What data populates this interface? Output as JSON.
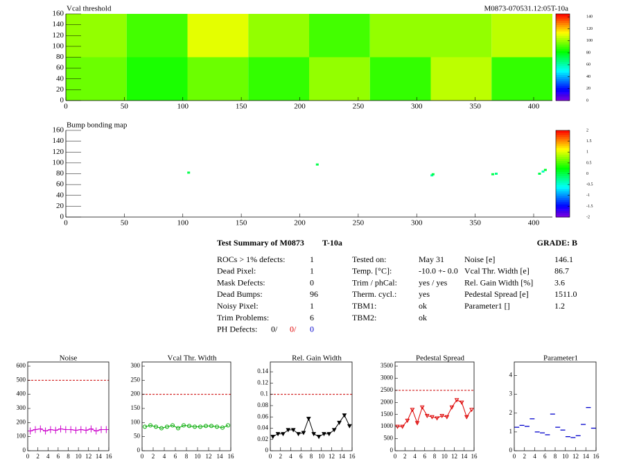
{
  "chart_data": [
    {
      "type": "heatmap",
      "title": "Vcal threshold",
      "subtitle": "M0873-070531.12:05T-10a",
      "xbins": [
        0,
        52,
        104,
        156,
        208,
        260,
        312,
        364,
        416
      ],
      "ybins": [
        0,
        80,
        160
      ],
      "z": [
        [
          95,
          85,
          95,
          88,
          100,
          88,
          105,
          88
        ],
        [
          100,
          90,
          110,
          100,
          90,
          100,
          100,
          105
        ]
      ],
      "xlim": [
        0,
        416
      ],
      "ylim": [
        0,
        160
      ],
      "xticks": [
        0,
        50,
        100,
        150,
        200,
        250,
        300,
        350,
        400
      ],
      "yticks": [
        0,
        20,
        40,
        60,
        80,
        100,
        120,
        140,
        160
      ],
      "zlim": [
        0,
        145
      ],
      "zticks": [
        0,
        20,
        40,
        60,
        80,
        100,
        120,
        140
      ]
    },
    {
      "type": "scatter",
      "title": "Bump bonding map",
      "x": [
        105,
        215,
        313,
        314,
        365,
        368,
        405,
        408,
        410
      ],
      "y": [
        82,
        97,
        77,
        79,
        79,
        80,
        80,
        84,
        87
      ],
      "z": [
        0,
        0,
        -0.3,
        0,
        0,
        -0.2,
        0,
        -0.4,
        0.1
      ],
      "xlim": [
        0,
        416
      ],
      "ylim": [
        0,
        160
      ],
      "xticks": [
        0,
        50,
        100,
        150,
        200,
        250,
        300,
        350,
        400
      ],
      "yticks": [
        0,
        20,
        40,
        60,
        80,
        100,
        120,
        140,
        160
      ],
      "zlim": [
        -2,
        2
      ],
      "zticks": [
        -2,
        -1.5,
        -1,
        -0.5,
        0,
        0.5,
        1,
        1.5,
        2
      ]
    },
    {
      "type": "line",
      "title": "Noise",
      "color": "#cc00cc",
      "marker": "cross",
      "line": true,
      "x": [
        0.5,
        1.5,
        2.5,
        3.5,
        4.5,
        5.5,
        6.5,
        7.5,
        8.5,
        9.5,
        10.5,
        11.5,
        12.5,
        13.5,
        14.5,
        15.5
      ],
      "values": [
        140,
        150,
        155,
        140,
        150,
        145,
        155,
        150,
        150,
        145,
        150,
        145,
        155,
        140,
        150,
        150
      ],
      "threshold": 500,
      "threshold_color": "#cc0000",
      "xlim": [
        0,
        16
      ],
      "ylim": [
        0,
        600
      ],
      "xticks": [
        0,
        2,
        4,
        6,
        8,
        10,
        12,
        14,
        16
      ],
      "yticks": [
        0,
        100,
        200,
        300,
        400,
        500,
        600
      ]
    },
    {
      "type": "line",
      "title": "Vcal Thr. Width",
      "color": "#00aa00",
      "marker": "circle",
      "line": true,
      "x": [
        0.5,
        1.5,
        2.5,
        3.5,
        4.5,
        5.5,
        6.5,
        7.5,
        8.5,
        9.5,
        10.5,
        11.5,
        12.5,
        13.5,
        14.5,
        15.5
      ],
      "values": [
        85,
        90,
        85,
        80,
        85,
        90,
        80,
        90,
        88,
        85,
        85,
        88,
        88,
        85,
        82,
        90
      ],
      "threshold": 200,
      "threshold_color": "#cc0000",
      "xlim": [
        0,
        16
      ],
      "ylim": [
        0,
        300
      ],
      "xticks": [
        0,
        2,
        4,
        6,
        8,
        10,
        12,
        14,
        16
      ],
      "yticks": [
        0,
        50,
        100,
        150,
        200,
        250,
        300
      ]
    },
    {
      "type": "line",
      "title": "Rel. Gain Width",
      "color": "#000000",
      "marker": "triangle",
      "line": true,
      "x": [
        0.5,
        1.5,
        2.5,
        3.5,
        4.5,
        5.5,
        6.5,
        7.5,
        8.5,
        9.5,
        10.5,
        11.5,
        12.5,
        13.5,
        14.5,
        15.5
      ],
      "values": [
        0.025,
        0.03,
        0.03,
        0.037,
        0.037,
        0.03,
        0.032,
        0.057,
        0.03,
        0.025,
        0.03,
        0.03,
        0.037,
        0.05,
        0.063,
        0.044
      ],
      "threshold": 0.1,
      "threshold_color": "#cc0000",
      "xlim": [
        0,
        16
      ],
      "ylim": [
        0,
        0.15
      ],
      "xticks": [
        0,
        2,
        4,
        6,
        8,
        10,
        12,
        14,
        16
      ],
      "yticks": [
        0,
        0.02,
        0.04,
        0.06,
        0.08,
        0.1,
        0.12,
        0.14
      ]
    },
    {
      "type": "line",
      "title": "Pedestal Spread",
      "color": "#dd0000",
      "marker": "triangle",
      "line": true,
      "x": [
        0.5,
        1.5,
        2.5,
        3.5,
        4.5,
        5.5,
        6.5,
        7.5,
        8.5,
        9.5,
        10.5,
        11.5,
        12.5,
        13.5,
        14.5,
        15.5
      ],
      "values": [
        1000,
        1000,
        1250,
        1700,
        1150,
        1800,
        1450,
        1400,
        1350,
        1450,
        1400,
        1800,
        2100,
        2000,
        1400,
        1700
      ],
      "threshold": 2500,
      "threshold_color": "#cc0000",
      "xlim": [
        0,
        16
      ],
      "ylim": [
        0,
        3500
      ],
      "xticks": [
        0,
        2,
        4,
        6,
        8,
        10,
        12,
        14,
        16
      ],
      "yticks": [
        0,
        500,
        1000,
        1500,
        2000,
        2500,
        3000,
        3500
      ]
    },
    {
      "type": "line",
      "title": "Parameter1",
      "color": "#0000cc",
      "marker": "dash",
      "line": false,
      "x": [
        0.5,
        1.5,
        2.5,
        3.5,
        4.5,
        5.5,
        6.5,
        7.5,
        8.5,
        9.5,
        10.5,
        11.5,
        12.5,
        13.5,
        14.5,
        15.5
      ],
      "values": [
        1.25,
        1.35,
        1.3,
        1.7,
        1.0,
        0.95,
        0.85,
        1.95,
        1.25,
        1.1,
        0.75,
        0.7,
        0.8,
        1.4,
        2.3,
        1.2
      ],
      "xlim": [
        0,
        16
      ],
      "ylim": [
        0,
        4.5
      ],
      "xticks": [
        0,
        2,
        4,
        6,
        8,
        10,
        12,
        14,
        16
      ],
      "yticks": [
        0,
        1,
        2,
        3,
        4
      ]
    }
  ],
  "summary": {
    "title": "Test Summary of M0873",
    "tag": "T-10a",
    "grade": "GRADE:  B",
    "left": [
      [
        "ROCs > 1% defects:",
        "1"
      ],
      [
        "Dead Pixel:",
        "1"
      ],
      [
        "Mask Defects:",
        "0"
      ],
      [
        "Dead Bumps:",
        "96"
      ],
      [
        "Noisy Pixel:",
        "1"
      ],
      [
        "Trim Problems:",
        "6"
      ]
    ],
    "ph_label": "PH Defects:",
    "ph_values": [
      "0/",
      "0/",
      "0"
    ],
    "middle": [
      [
        "Tested on:",
        "May 31"
      ],
      [
        "Temp. [°C]:",
        "-10.0 +- 0.0"
      ],
      [
        "Trim / phCal:",
        "yes / yes"
      ],
      [
        "Therm. cycl.:",
        "yes"
      ],
      [
        "TBM1:",
        "ok"
      ],
      [
        "TBM2:",
        "ok"
      ]
    ],
    "right": [
      [
        "Noise [e]",
        "146.1"
      ],
      [
        "Vcal Thr. Width [e]",
        "86.7"
      ],
      [
        "Rel. Gain Width [%]",
        "3.6"
      ],
      [
        "Pedestal Spread [e]",
        "1511.0"
      ],
      [
        "Parameter1 []",
        "1.2"
      ]
    ]
  }
}
